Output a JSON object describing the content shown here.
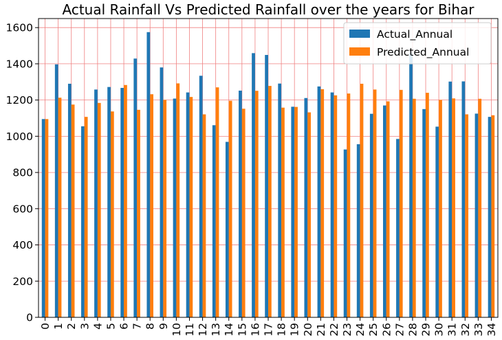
{
  "chart_data": {
    "type": "bar",
    "title": "Actual Rainfall Vs Predicted Rainfall over the years for Bihar",
    "xlabel": "",
    "ylabel": "",
    "categories": [
      "0",
      "1",
      "2",
      "3",
      "4",
      "5",
      "6",
      "7",
      "8",
      "9",
      "10",
      "11",
      "12",
      "13",
      "14",
      "15",
      "16",
      "17",
      "18",
      "19",
      "20",
      "21",
      "22",
      "23",
      "24",
      "25",
      "26",
      "27",
      "28",
      "29",
      "30",
      "31",
      "32",
      "33",
      "34"
    ],
    "ylim": [
      0,
      1650
    ],
    "yticks": [
      0,
      200,
      400,
      600,
      800,
      1000,
      1200,
      1400,
      1600
    ],
    "grid": true,
    "grid_color": "#f08080",
    "legend_position": "top-right",
    "series": [
      {
        "name": "Actual_Annual",
        "color": "#1f77b4",
        "values": [
          1095,
          1397,
          1290,
          1055,
          1258,
          1272,
          1267,
          1429,
          1575,
          1380,
          1208,
          1242,
          1334,
          1061,
          969,
          1252,
          1459,
          1449,
          1291,
          1163,
          1211,
          1275,
          1242,
          927,
          956,
          1124,
          1170,
          985,
          1460,
          1150,
          1053,
          1302,
          1303,
          1125,
          1107
        ]
      },
      {
        "name": "Predicted_Annual",
        "color": "#ff7f0e",
        "values": [
          1095,
          1213,
          1175,
          1107,
          1184,
          1137,
          1283,
          1146,
          1232,
          1201,
          1292,
          1217,
          1121,
          1270,
          1196,
          1152,
          1251,
          1278,
          1158,
          1162,
          1132,
          1260,
          1226,
          1236,
          1290,
          1258,
          1193,
          1256,
          1207,
          1240,
          1201,
          1209,
          1121,
          1207,
          1116
        ]
      }
    ]
  }
}
